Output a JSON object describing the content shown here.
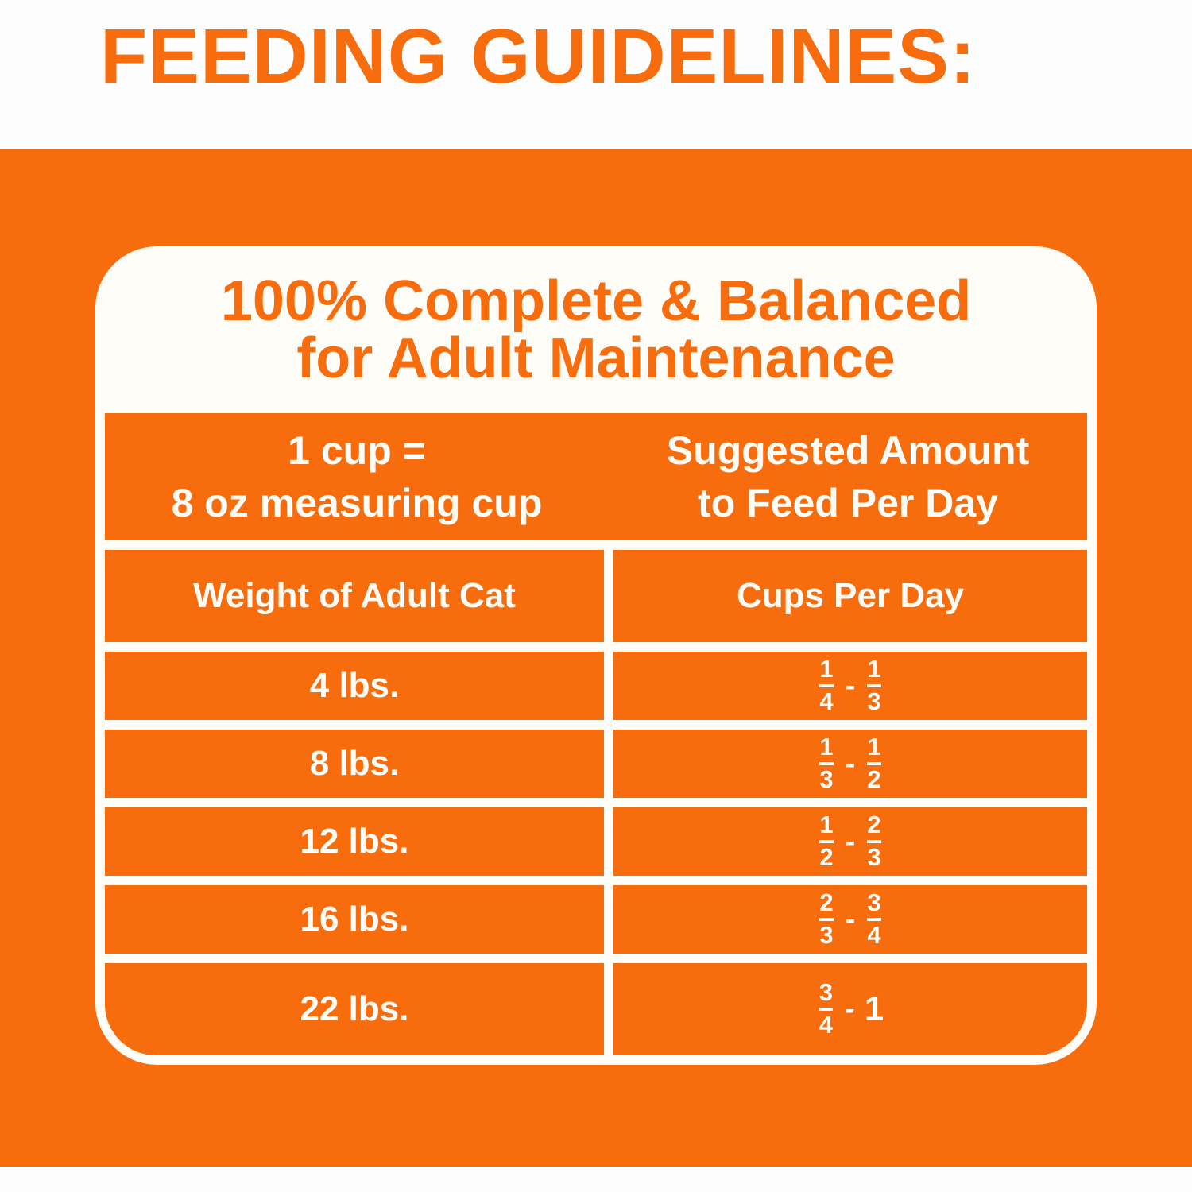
{
  "page": {
    "title": "FEEDING GUIDELINES:"
  },
  "colors": {
    "orange": "#F76C0C",
    "cream": "#FEFCF7"
  },
  "panel": {
    "heading_line1": "100% Complete & Balanced",
    "heading_line2": "for Adult Maintenance"
  },
  "table": {
    "header": {
      "col1_line1": "1 cup =",
      "col1_line2": "8 oz measuring cup",
      "col2_line1": "Suggested Amount",
      "col2_line2": "to Feed Per Day"
    },
    "subheader": {
      "col1": "Weight of Adult Cat",
      "col2": "Cups Per Day"
    },
    "separator": "-",
    "rows": [
      {
        "weight": "4 lbs.",
        "from": {
          "num": "1",
          "den": "4"
        },
        "to": {
          "num": "1",
          "den": "3"
        }
      },
      {
        "weight": "8 lbs.",
        "from": {
          "num": "1",
          "den": "3"
        },
        "to": {
          "num": "1",
          "den": "2"
        }
      },
      {
        "weight": "12 lbs.",
        "from": {
          "num": "1",
          "den": "2"
        },
        "to": {
          "num": "2",
          "den": "3"
        }
      },
      {
        "weight": "16 lbs.",
        "from": {
          "num": "2",
          "den": "3"
        },
        "to": {
          "num": "3",
          "den": "4"
        }
      },
      {
        "weight": "22 lbs.",
        "from": {
          "num": "3",
          "den": "4"
        },
        "to_whole": "1"
      }
    ]
  }
}
